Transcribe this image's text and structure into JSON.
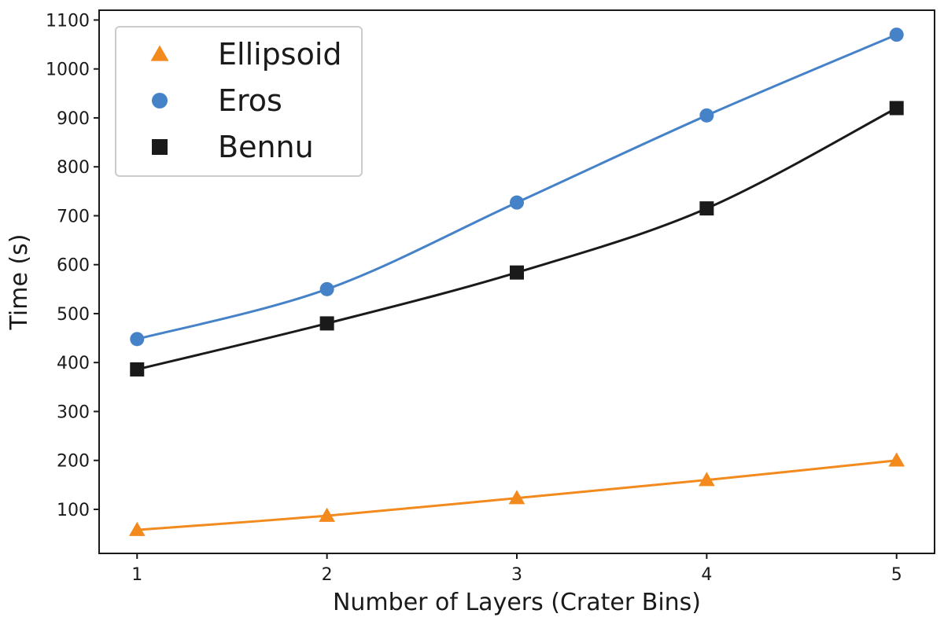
{
  "chart_data": {
    "type": "line",
    "xlabel": "Number of Layers (Crater Bins)",
    "ylabel": "Time (s)",
    "x": [
      1,
      2,
      3,
      4,
      5
    ],
    "xticks": [
      "1",
      "2",
      "3",
      "4",
      "5"
    ],
    "yticks": [
      "100",
      "200",
      "300",
      "400",
      "500",
      "600",
      "700",
      "800",
      "900",
      "1000",
      "1100"
    ],
    "xlim": [
      0.8,
      5.2
    ],
    "ylim": [
      10,
      1120
    ],
    "grid": false,
    "legend_position": "top-left",
    "series": [
      {
        "name": "Ellipsoid",
        "marker": "triangle",
        "color": "#f28a1e",
        "values": [
          58,
          87,
          123,
          160,
          200
        ]
      },
      {
        "name": "Eros",
        "marker": "circle",
        "color": "#4682c8",
        "values": [
          448,
          550,
          727,
          905,
          1070
        ]
      },
      {
        "name": "Bennu",
        "marker": "square",
        "color": "#1a1a1a",
        "values": [
          386,
          480,
          584,
          715,
          920
        ]
      }
    ]
  }
}
